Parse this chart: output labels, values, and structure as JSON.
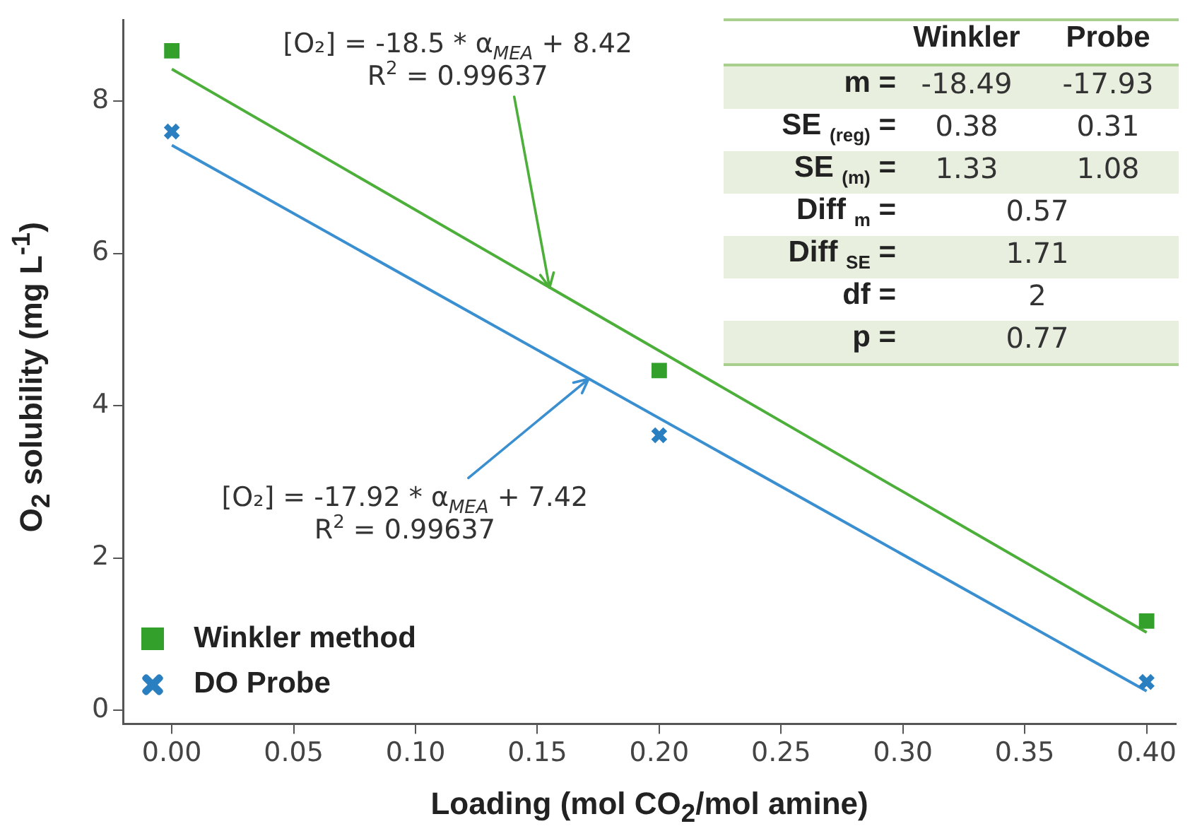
{
  "chart_data": {
    "type": "scatter",
    "xlabel": "Loading (mol CO$_{2}$/mol amine)",
    "ylabel": "O$_{2}$ solubility (mg L$^{-1}$)",
    "xlim": [
      -0.02,
      0.412
    ],
    "xticks": [
      {
        "value": 0,
        "label": "0.00"
      },
      {
        "value": 0.05,
        "label": "0.05"
      },
      {
        "value": 0.1,
        "label": "0.10"
      },
      {
        "value": 0.15,
        "label": "0.15"
      },
      {
        "value": 0.2,
        "label": "0.20"
      },
      {
        "value": 0.25,
        "label": "0.25"
      },
      {
        "value": 0.3,
        "label": "0.30"
      },
      {
        "value": 0.35,
        "label": "0.35"
      },
      {
        "value": 0.4,
        "label": "0.40"
      }
    ],
    "ylim": [
      -0.18,
      9.06
    ],
    "yticks": [
      0,
      2,
      4,
      6,
      8
    ],
    "legend": "bottom left",
    "series": [
      {
        "name": "Winkler method",
        "type": "scatter",
        "color": "#33a02c",
        "marker": "square",
        "x": [
          0,
          0.2,
          0.4
        ],
        "values": [
          8.66,
          4.46,
          1.17
        ]
      },
      {
        "name": "DO Probe",
        "type": "scatter",
        "color": "#2a7fc0",
        "marker": "cross",
        "x": [
          0,
          0.2,
          0.4
        ],
        "values": [
          7.6,
          3.61,
          0.37
        ]
      },
      {
        "type": "line",
        "color": "#4caf3a",
        "x": [
          0,
          0.4
        ],
        "values": [
          8.42,
          1.02
        ]
      },
      {
        "type": "line",
        "color": "#3a8fd0",
        "x": [
          0,
          0.4
        ],
        "values": [
          7.42,
          0.25
        ]
      }
    ],
    "annotations": [
      {
        "text": "[O₂] = -18.5 * α$_{MEA}$ + 8.42",
        "x": 0.155,
        "y": 5.55
      },
      "R$^{2}$ = 0.99637",
      {
        "text": "[O₂] = -17.92 * α$_{MEA}$ + 7.42",
        "x": 0.171,
        "y": 4.35
      },
      "R$^{2}$ = 0.99637",
      "Winkler",
      "Probe",
      "m =",
      "-18.49",
      "-17.93",
      "SE $_{(reg)}$ =",
      "0.38",
      "0.31",
      "SE $_{(m)}$ =",
      "1.33",
      "1.08",
      "Diff $_{m}$ =",
      "0.57",
      "Diff $_{SE}$ =",
      "1.71",
      "df =",
      "2",
      "p =",
      "0.77"
    ]
  }
}
